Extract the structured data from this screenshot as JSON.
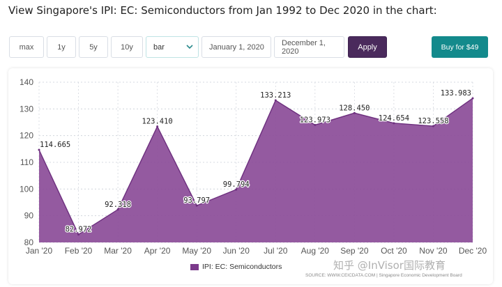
{
  "header": {
    "title": "View Singapore's IPI: EC: Semiconductors from Jan 1992 to Dec 2020 in the chart:"
  },
  "toolbar": {
    "range_buttons": [
      "max",
      "1y",
      "5y",
      "10y"
    ],
    "chart_type_value": "bar",
    "start_date": "January 1, 2020",
    "end_date": "December 1, 2020",
    "apply_label": "Apply",
    "buy_label": "Buy for $49"
  },
  "colors": {
    "area_fill": "#8b4c98",
    "area_stroke": "#6d2f7e",
    "apply_bg": "#4a2a5c",
    "buy_bg": "#138a8c"
  },
  "chart_data": {
    "type": "area",
    "categories": [
      "Jan '20",
      "Feb '20",
      "Mar '20",
      "Apr '20",
      "May '20",
      "Jun '20",
      "Jul '20",
      "Aug '20",
      "Sep '20",
      "Oct '20",
      "Nov '20",
      "Dec '20"
    ],
    "series": [
      {
        "name": "IPI: EC: Semiconductors",
        "values": [
          114.665,
          82.972,
          92.318,
          123.41,
          93.797,
          99.794,
          133.213,
          123.973,
          128.45,
          124.654,
          123.558,
          133.983
        ],
        "labels": [
          "114.665",
          "82.972",
          "92.318",
          "123.410",
          "93.797",
          "99.794",
          "133.213",
          "123.973",
          "128.450",
          "124.654",
          "123.558",
          "133.983"
        ]
      }
    ],
    "ylim": [
      80,
      140
    ],
    "yticks": [
      "80",
      "90",
      "100",
      "110",
      "120",
      "130",
      "140"
    ],
    "grid": true,
    "legend_position": "bottom"
  },
  "footer": {
    "source": "SOURCE: WWW.CEICDATA.COM | Singapore Economic Development Board",
    "watermark": "知乎 @InVisor国际教育"
  }
}
